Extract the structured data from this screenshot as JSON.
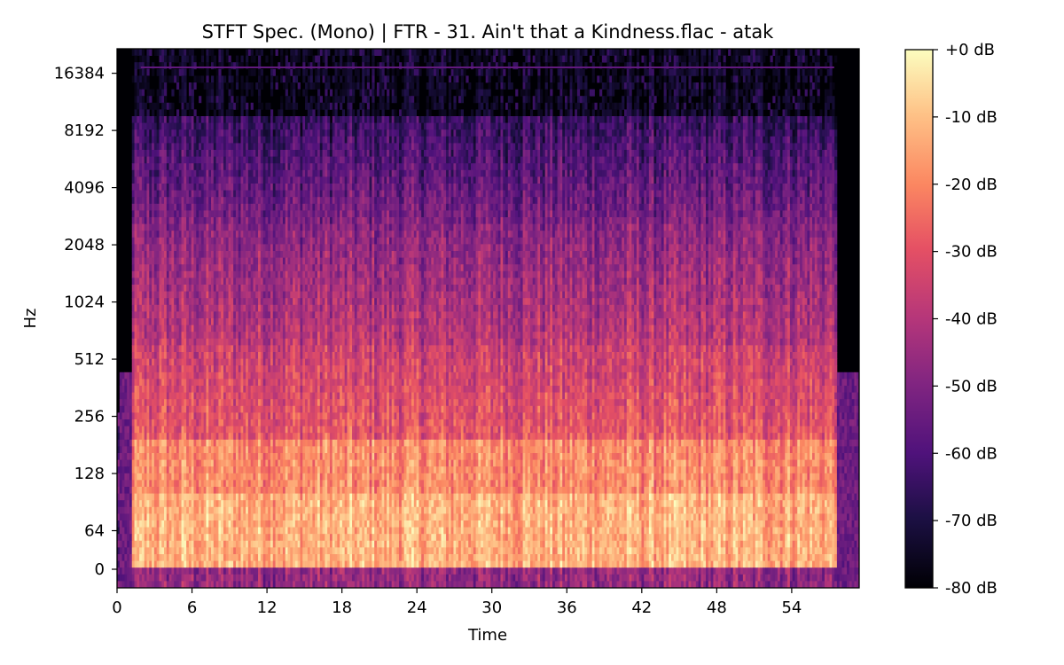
{
  "chart_data": {
    "type": "heatmap",
    "title": "STFT Spec. (Mono) | FTR - 31. Ain't that a Kindness.flac - atak",
    "xlabel": "Time",
    "ylabel": "Hz",
    "x_ticks": [
      0,
      6,
      12,
      18,
      24,
      30,
      36,
      42,
      48,
      54
    ],
    "xlim": [
      0,
      59.4
    ],
    "y_scale": "symlog",
    "y_ticks": [
      0,
      64,
      128,
      256,
      512,
      1024,
      2048,
      4096,
      8192,
      16384
    ],
    "y_tick_labels": [
      "0",
      "64",
      "128",
      "256",
      "512",
      "1024",
      "2048",
      "4096",
      "8192",
      "16384"
    ],
    "ylim": [
      0,
      22050
    ],
    "audio_span_seconds": [
      1.2,
      57.6
    ],
    "colormap": "magma",
    "colorbar": {
      "range_db": [
        -80,
        0
      ],
      "ticks": [
        0,
        -10,
        -20,
        -30,
        -40,
        -50,
        -60,
        -70,
        -80
      ],
      "labels": [
        "+0 dB",
        "-10 dB",
        "-20 dB",
        "-30 dB",
        "-40 dB",
        "-50 dB",
        "-60 dB",
        "-70 dB",
        "-80 dB"
      ]
    },
    "legend": "none"
  }
}
